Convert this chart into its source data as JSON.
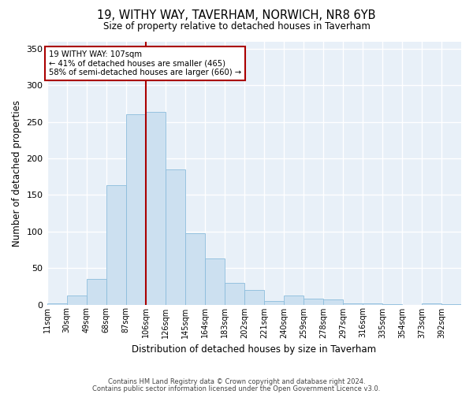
{
  "title": "19, WITHY WAY, TAVERHAM, NORWICH, NR8 6YB",
  "subtitle": "Size of property relative to detached houses in Taverham",
  "xlabel": "Distribution of detached houses by size in Taverham",
  "ylabel": "Number of detached properties",
  "bar_labels": [
    "11sqm",
    "30sqm",
    "49sqm",
    "68sqm",
    "87sqm",
    "106sqm",
    "126sqm",
    "145sqm",
    "164sqm",
    "183sqm",
    "202sqm",
    "221sqm",
    "240sqm",
    "259sqm",
    "278sqm",
    "297sqm",
    "316sqm",
    "335sqm",
    "354sqm",
    "373sqm",
    "392sqm"
  ],
  "bar_heights": [
    2,
    12,
    35,
    163,
    260,
    263,
    185,
    98,
    63,
    30,
    20,
    5,
    12,
    8,
    7,
    2,
    2,
    1,
    0,
    2,
    1
  ],
  "bar_color": "#cce0f0",
  "bar_edge_color": "#8bbcdc",
  "bg_color": "#e8f0f8",
  "grid_color": "#ffffff",
  "property_line_color": "#aa0000",
  "annotation_text": "19 WITHY WAY: 107sqm\n← 41% of detached houses are smaller (465)\n58% of semi-detached houses are larger (660) →",
  "annotation_box_color": "#aa0000",
  "ylim": [
    0,
    360
  ],
  "yticks": [
    0,
    50,
    100,
    150,
    200,
    250,
    300,
    350
  ],
  "footer1": "Contains HM Land Registry data © Crown copyright and database right 2024.",
  "footer2": "Contains public sector information licensed under the Open Government Licence v3.0.",
  "bin_width": 19
}
